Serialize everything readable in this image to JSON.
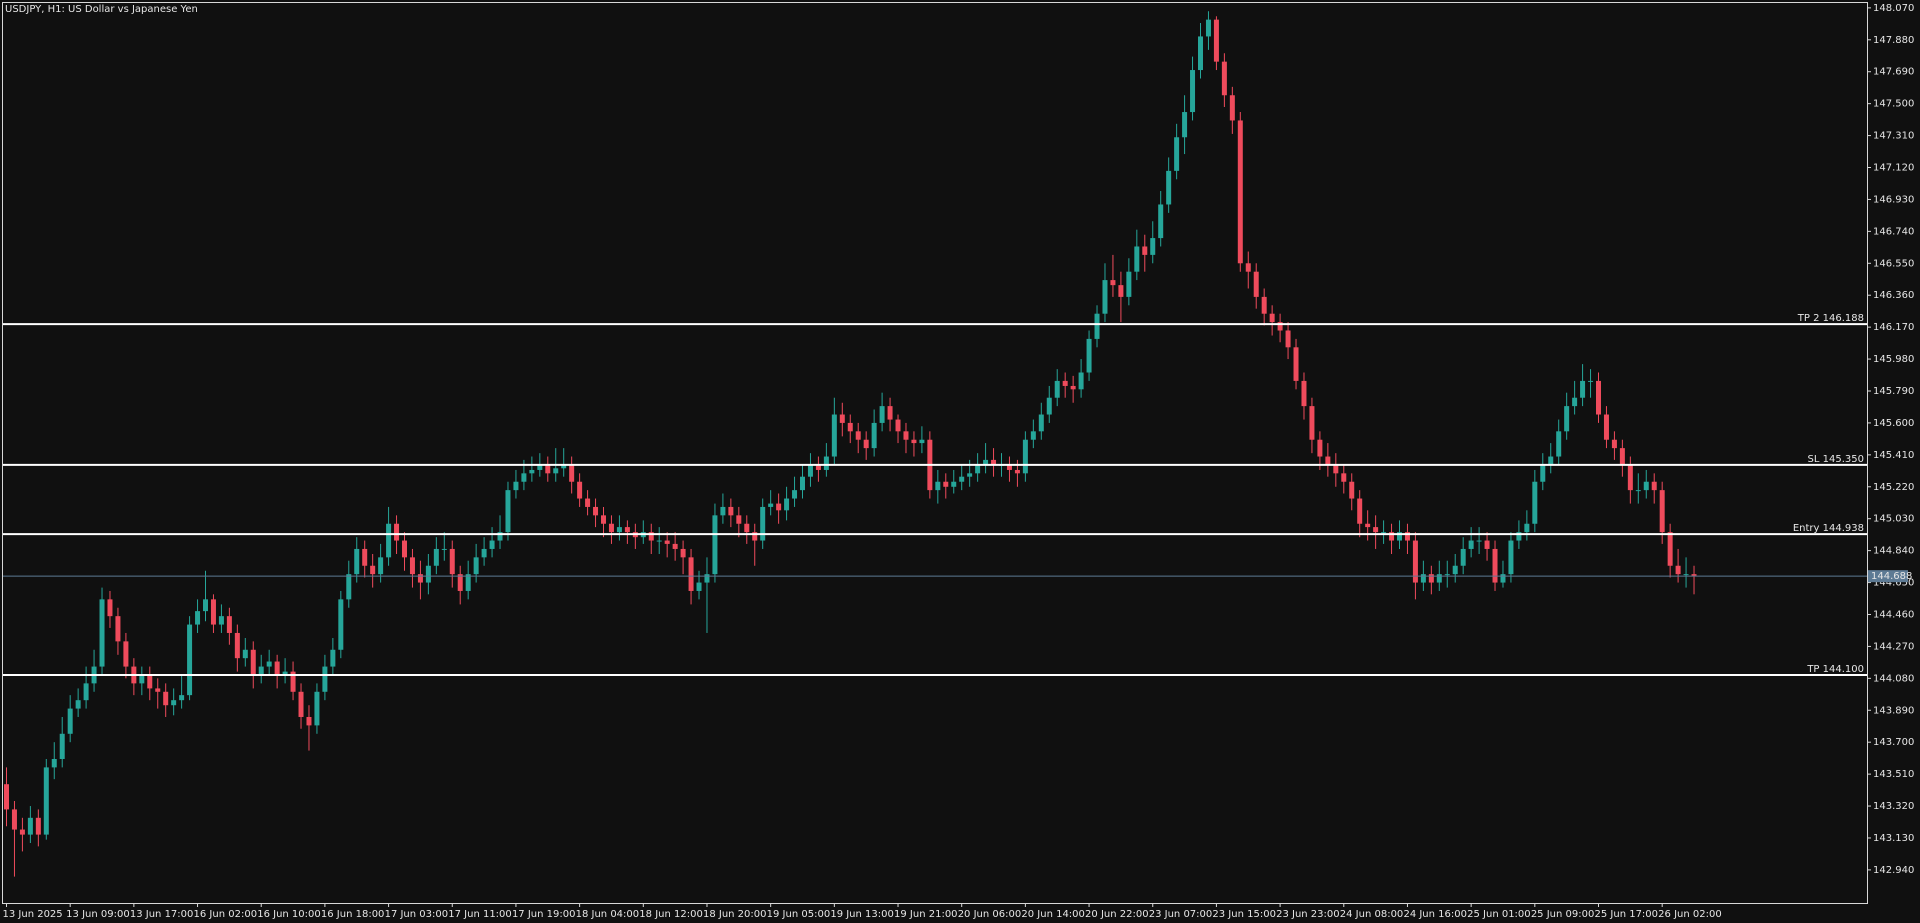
{
  "chart_data": {
    "type": "candlestick",
    "title": "USDJPY, H1:  US Dollar vs Japanese Yen",
    "up_color": "#26a69a",
    "down_color": "#ef4b5c",
    "categories": [
      "13 Jun 2025",
      null,
      null,
      null,
      null,
      null,
      null,
      null,
      "13 Jun 09:00",
      null,
      null,
      null,
      null,
      null,
      null,
      null,
      "13 Jun 17:00",
      null,
      null,
      null,
      null,
      null,
      null,
      null,
      "16 Jun 02:00",
      null,
      null,
      null,
      null,
      null,
      null,
      null,
      "16 Jun 10:00",
      null,
      null,
      null,
      null,
      null,
      null,
      null,
      "16 Jun 18:00",
      null,
      null,
      null,
      null,
      null,
      null,
      null,
      "17 Jun 03:00",
      null,
      null,
      null,
      null,
      null,
      null,
      null,
      "17 Jun 11:00",
      null,
      null,
      null,
      null,
      null,
      null,
      null,
      "17 Jun 19:00",
      null,
      null,
      null,
      null,
      null,
      null,
      null,
      "18 Jun 04:00",
      null,
      null,
      null,
      null,
      null,
      null,
      null,
      "18 Jun 12:00",
      null,
      null,
      null,
      null,
      null,
      null,
      null,
      "18 Jun 20:00",
      null,
      null,
      null,
      null,
      null,
      null,
      null,
      "19 Jun 05:00",
      null,
      null,
      null,
      null,
      null,
      null,
      null,
      "19 Jun 13:00",
      null,
      null,
      null,
      null,
      null,
      null,
      null,
      "19 Jun 21:00",
      null,
      null,
      null,
      null,
      null,
      null,
      null,
      "20 Jun 06:00",
      null,
      null,
      null,
      null,
      null,
      null,
      null,
      "20 Jun 14:00",
      null,
      null,
      null,
      null,
      null,
      null,
      null,
      "20 Jun 22:00",
      null,
      null,
      null,
      null,
      null,
      null,
      null,
      "23 Jun 07:00",
      null,
      null,
      null,
      null,
      null,
      null,
      null,
      "23 Jun 15:00",
      null,
      null,
      null,
      null,
      null,
      null,
      null,
      "23 Jun 23:00",
      null,
      null,
      null,
      null,
      null,
      null,
      null,
      "24 Jun 08:00",
      null,
      null,
      null,
      null,
      null,
      null,
      null,
      "24 Jun 16:00",
      null,
      null,
      null,
      null,
      null,
      null,
      null,
      "25 Jun 01:00",
      null,
      null,
      null,
      null,
      null,
      null,
      null,
      "25 Jun 09:00",
      null,
      null,
      null,
      null,
      null,
      null,
      null,
      "25 Jun 17:00",
      null,
      null,
      null,
      null,
      null,
      null,
      null,
      "26 Jun 02:00",
      null,
      null,
      null,
      null
    ],
    "open": [
      143.45,
      143.3,
      143.18,
      143.15,
      143.25,
      143.15,
      143.55,
      143.6,
      143.75,
      143.9,
      143.95,
      144.05,
      144.15,
      144.55,
      144.45,
      144.3,
      144.15,
      144.05,
      144.1,
      144.02,
      144.0,
      143.92,
      143.95,
      143.98,
      144.4,
      144.48,
      144.55,
      144.4,
      144.45,
      144.35,
      144.2,
      144.25,
      144.1,
      144.15,
      144.18,
      144.1,
      144.12,
      144.0,
      143.85,
      143.8,
      144.0,
      144.15,
      144.25,
      144.55,
      144.7,
      144.85,
      144.75,
      144.7,
      144.8,
      145.0,
      144.9,
      144.8,
      144.7,
      144.65,
      144.75,
      144.85,
      144.85,
      144.7,
      144.6,
      144.7,
      144.8,
      144.85,
      144.9,
      144.95,
      145.2,
      145.25,
      145.3,
      145.32,
      145.35,
      145.3,
      145.33,
      145.35,
      145.25,
      145.15,
      145.1,
      145.05,
      145.0,
      144.95,
      144.98,
      144.95,
      144.92,
      144.95,
      144.9,
      144.9,
      144.88,
      144.85,
      144.8,
      144.6,
      144.65,
      144.7,
      145.05,
      145.1,
      145.05,
      145.0,
      144.95,
      144.9,
      145.1,
      145.12,
      145.08,
      145.15,
      145.2,
      145.28,
      145.35,
      145.32,
      145.4,
      145.65,
      145.6,
      145.55,
      145.5,
      145.45,
      145.6,
      145.7,
      145.62,
      145.55,
      145.5,
      145.48,
      145.5,
      145.2,
      145.25,
      145.22,
      145.25,
      145.28,
      145.3,
      145.35,
      145.38,
      145.35,
      145.35,
      145.32,
      145.3,
      145.5,
      145.55,
      145.65,
      145.75,
      145.85,
      145.82,
      145.8,
      145.9,
      146.1,
      146.25,
      146.45,
      146.42,
      146.35,
      146.5,
      146.65,
      146.6,
      146.7,
      146.9,
      147.1,
      147.3,
      147.45,
      147.7,
      147.9,
      148.0,
      147.75,
      147.55,
      147.4,
      146.55,
      146.5,
      146.35,
      146.25,
      146.2,
      146.15,
      146.05,
      145.85,
      145.7,
      145.5,
      145.4,
      145.35,
      145.3,
      145.25,
      145.15,
      145.0,
      144.98,
      144.95,
      144.95,
      144.9,
      144.95,
      144.9,
      144.65,
      144.7,
      144.65,
      144.7,
      144.7,
      144.75,
      144.85,
      144.9,
      144.9,
      144.85,
      144.65,
      144.7,
      144.9,
      144.95,
      145.0,
      145.25,
      145.35,
      145.4,
      145.55,
      145.7,
      145.75,
      145.85,
      145.85,
      145.65,
      145.5,
      145.45,
      145.35,
      145.2,
      145.2,
      145.25,
      145.2,
      144.95,
      144.75,
      144.7,
      144.7
    ],
    "high": [
      143.55,
      143.35,
      143.25,
      143.32,
      143.3,
      143.6,
      143.7,
      143.85,
      143.98,
      144.02,
      144.15,
      144.25,
      144.62,
      144.6,
      144.5,
      144.35,
      144.2,
      144.15,
      144.15,
      144.08,
      144.05,
      144.02,
      144.1,
      144.45,
      144.55,
      144.72,
      144.58,
      144.52,
      144.5,
      144.4,
      144.32,
      144.3,
      144.22,
      144.25,
      144.22,
      144.2,
      144.18,
      144.05,
      143.92,
      144.05,
      144.22,
      144.32,
      144.6,
      144.78,
      144.92,
      144.9,
      144.82,
      144.88,
      145.1,
      145.05,
      144.95,
      144.85,
      144.78,
      144.82,
      144.92,
      144.95,
      144.9,
      144.75,
      144.78,
      144.88,
      144.92,
      144.98,
      145.05,
      145.25,
      145.32,
      145.38,
      145.4,
      145.42,
      145.4,
      145.45,
      145.45,
      145.4,
      145.3,
      145.2,
      145.15,
      145.1,
      145.05,
      145.05,
      145.02,
      145.0,
      145.02,
      145.0,
      144.98,
      144.95,
      144.95,
      144.9,
      144.85,
      144.72,
      144.8,
      145.12,
      145.18,
      145.15,
      145.1,
      145.05,
      145.0,
      145.15,
      145.2,
      145.18,
      145.22,
      145.28,
      145.35,
      145.42,
      145.4,
      145.48,
      145.75,
      145.72,
      145.65,
      145.6,
      145.55,
      145.68,
      145.78,
      145.75,
      145.65,
      145.6,
      145.55,
      145.58,
      145.55,
      145.32,
      145.3,
      145.32,
      145.35,
      145.38,
      145.42,
      145.48,
      145.45,
      145.42,
      145.4,
      145.38,
      145.55,
      145.62,
      145.72,
      145.82,
      145.92,
      145.9,
      145.88,
      145.98,
      146.15,
      146.3,
      146.55,
      146.6,
      146.5,
      146.58,
      146.75,
      146.72,
      146.8,
      146.98,
      147.18,
      147.38,
      147.55,
      147.78,
      147.98,
      148.05,
      148.02,
      147.8,
      147.6,
      147.45,
      146.62,
      146.55,
      146.4,
      146.3,
      146.25,
      146.2,
      146.1,
      145.9,
      145.75,
      145.55,
      145.48,
      145.42,
      145.35,
      145.3,
      145.2,
      145.08,
      145.05,
      145.02,
      145.0,
      145.02,
      145.0,
      144.95,
      144.78,
      144.75,
      144.78,
      144.78,
      144.82,
      144.92,
      144.98,
      144.98,
      144.95,
      144.9,
      144.78,
      144.95,
      145.02,
      145.08,
      145.32,
      145.42,
      145.48,
      145.62,
      145.78,
      145.85,
      145.95,
      145.92,
      145.9,
      145.7,
      145.55,
      145.5,
      145.4,
      145.3,
      145.32,
      145.3,
      145.25,
      145.0,
      144.85,
      144.8,
      144.75
    ],
    "low": [
      143.2,
      142.9,
      143.05,
      143.1,
      143.08,
      143.12,
      143.48,
      143.55,
      143.7,
      143.85,
      143.9,
      144.0,
      144.1,
      144.38,
      144.22,
      144.08,
      143.98,
      143.98,
      143.95,
      143.9,
      143.85,
      143.86,
      143.9,
      143.95,
      144.35,
      144.42,
      144.35,
      144.35,
      144.28,
      144.12,
      144.15,
      144.02,
      144.05,
      144.1,
      144.02,
      144.05,
      143.95,
      143.78,
      143.65,
      143.75,
      143.95,
      144.1,
      144.2,
      144.5,
      144.65,
      144.68,
      144.62,
      144.65,
      144.75,
      144.82,
      144.72,
      144.62,
      144.55,
      144.58,
      144.7,
      144.78,
      144.62,
      144.52,
      144.55,
      144.65,
      144.75,
      144.8,
      144.85,
      144.9,
      145.15,
      145.2,
      145.25,
      145.28,
      145.25,
      145.25,
      145.28,
      145.18,
      145.1,
      145.05,
      144.98,
      144.92,
      144.88,
      144.9,
      144.88,
      144.85,
      144.88,
      144.82,
      144.82,
      144.8,
      144.78,
      144.7,
      144.52,
      144.55,
      144.35,
      144.65,
      145.0,
      144.98,
      144.92,
      144.88,
      144.75,
      144.85,
      145.05,
      145.0,
      145.02,
      145.1,
      145.15,
      145.22,
      145.25,
      145.28,
      145.35,
      145.52,
      145.48,
      145.42,
      145.38,
      145.4,
      145.55,
      145.55,
      145.48,
      145.42,
      145.4,
      145.42,
      145.15,
      145.12,
      145.15,
      145.18,
      145.2,
      145.22,
      145.25,
      145.3,
      145.28,
      145.28,
      145.25,
      145.22,
      145.25,
      145.45,
      145.5,
      145.6,
      145.7,
      145.75,
      145.72,
      145.75,
      145.85,
      146.05,
      146.2,
      146.35,
      146.2,
      146.3,
      146.45,
      146.5,
      146.55,
      146.65,
      146.85,
      147.05,
      147.2,
      147.4,
      147.65,
      147.82,
      147.7,
      147.48,
      147.32,
      146.5,
      146.4,
      146.28,
      146.18,
      146.12,
      146.08,
      145.98,
      145.8,
      145.62,
      145.42,
      145.32,
      145.28,
      145.22,
      145.18,
      145.08,
      144.92,
      144.9,
      144.85,
      144.88,
      144.82,
      144.85,
      144.82,
      144.55,
      144.6,
      144.58,
      144.6,
      144.62,
      144.65,
      144.7,
      144.8,
      144.82,
      144.78,
      144.6,
      144.62,
      144.65,
      144.85,
      144.9,
      144.95,
      145.2,
      145.3,
      145.35,
      145.5,
      145.65,
      145.7,
      145.75,
      145.6,
      145.45,
      145.38,
      145.28,
      145.12,
      145.12,
      145.15,
      145.12,
      144.88,
      144.68,
      144.65,
      144.62,
      144.58
    ],
    "close": [
      143.3,
      143.18,
      143.15,
      143.25,
      143.15,
      143.55,
      143.6,
      143.75,
      143.9,
      143.95,
      144.05,
      144.15,
      144.55,
      144.45,
      144.3,
      144.15,
      144.05,
      144.1,
      144.02,
      144.0,
      143.92,
      143.95,
      143.98,
      144.4,
      144.48,
      144.55,
      144.4,
      144.45,
      144.35,
      144.2,
      144.25,
      144.1,
      144.15,
      144.18,
      144.1,
      144.12,
      144.0,
      143.85,
      143.8,
      144.0,
      144.15,
      144.25,
      144.55,
      144.7,
      144.85,
      144.75,
      144.7,
      144.8,
      145.0,
      144.9,
      144.8,
      144.7,
      144.65,
      144.75,
      144.85,
      144.85,
      144.7,
      144.6,
      144.7,
      144.8,
      144.85,
      144.9,
      144.95,
      145.2,
      145.25,
      145.3,
      145.32,
      145.35,
      145.3,
      145.33,
      145.35,
      145.25,
      145.15,
      145.1,
      145.05,
      145.0,
      144.95,
      144.98,
      144.95,
      144.92,
      144.95,
      144.9,
      144.9,
      144.88,
      144.85,
      144.8,
      144.6,
      144.65,
      144.7,
      145.05,
      145.1,
      145.05,
      145.0,
      144.95,
      144.9,
      145.1,
      145.12,
      145.08,
      145.15,
      145.2,
      145.28,
      145.35,
      145.32,
      145.4,
      145.65,
      145.6,
      145.55,
      145.5,
      145.45,
      145.6,
      145.7,
      145.62,
      145.55,
      145.5,
      145.48,
      145.5,
      145.2,
      145.25,
      145.22,
      145.25,
      145.28,
      145.3,
      145.35,
      145.38,
      145.35,
      145.35,
      145.32,
      145.3,
      145.5,
      145.55,
      145.65,
      145.75,
      145.85,
      145.82,
      145.8,
      145.9,
      146.1,
      146.25,
      146.45,
      146.42,
      146.35,
      146.5,
      146.65,
      146.6,
      146.7,
      146.9,
      147.1,
      147.3,
      147.45,
      147.7,
      147.9,
      148.0,
      147.75,
      147.55,
      147.4,
      146.55,
      146.5,
      146.35,
      146.25,
      146.2,
      146.15,
      146.05,
      145.85,
      145.7,
      145.5,
      145.4,
      145.35,
      145.3,
      145.25,
      145.15,
      145.0,
      144.98,
      144.95,
      144.95,
      144.9,
      144.95,
      144.9,
      144.65,
      144.7,
      144.65,
      144.7,
      144.7,
      144.75,
      144.85,
      144.9,
      144.9,
      144.85,
      144.65,
      144.7,
      144.9,
      144.95,
      145.0,
      145.25,
      145.35,
      145.4,
      145.55,
      145.7,
      145.75,
      145.85,
      145.85,
      145.65,
      145.5,
      145.45,
      145.35,
      145.2,
      145.2,
      145.25,
      145.2,
      144.95,
      144.75,
      144.7,
      144.7,
      144.69
    ],
    "ylim": [
      142.743,
      148.099
    ],
    "yticks": [
      {
        "value": 142.94,
        "label": "142.940"
      },
      {
        "value": 143.13,
        "label": "143.130"
      },
      {
        "value": 143.32,
        "label": "143.320"
      },
      {
        "value": 143.51,
        "label": "143.510"
      },
      {
        "value": 143.7,
        "label": "143.700"
      },
      {
        "value": 143.89,
        "label": "143.890"
      },
      {
        "value": 144.08,
        "label": "144.080"
      },
      {
        "value": 144.27,
        "label": "144.270"
      },
      {
        "value": 144.46,
        "label": "144.460"
      },
      {
        "value": 144.65,
        "label": "144.650"
      },
      {
        "value": 144.84,
        "label": "144.840"
      },
      {
        "value": 145.03,
        "label": "145.030"
      },
      {
        "value": 145.22,
        "label": "145.220"
      },
      {
        "value": 145.41,
        "label": "145.410"
      },
      {
        "value": 145.6,
        "label": "145.600"
      },
      {
        "value": 145.79,
        "label": "145.790"
      },
      {
        "value": 145.98,
        "label": "145.980"
      },
      {
        "value": 146.17,
        "label": "146.170"
      },
      {
        "value": 146.36,
        "label": "146.360"
      },
      {
        "value": 146.55,
        "label": "146.550"
      },
      {
        "value": 146.74,
        "label": "146.740"
      },
      {
        "value": 146.93,
        "label": "146.930"
      },
      {
        "value": 147.12,
        "label": "147.120"
      },
      {
        "value": 147.31,
        "label": "147.310"
      },
      {
        "value": 147.5,
        "label": "147.500"
      },
      {
        "value": 147.69,
        "label": "147.690"
      },
      {
        "value": 147.88,
        "label": "147.880"
      },
      {
        "value": 148.07,
        "label": "148.070"
      }
    ],
    "levels": [
      {
        "label": "TP 2 146.188",
        "value": 146.188
      },
      {
        "label": "SL 145.350",
        "value": 145.35
      },
      {
        "label": "Entry 144.938",
        "value": 144.938
      },
      {
        "label": "TP 144.100",
        "value": 144.1
      }
    ],
    "current_price": 144.688
  }
}
